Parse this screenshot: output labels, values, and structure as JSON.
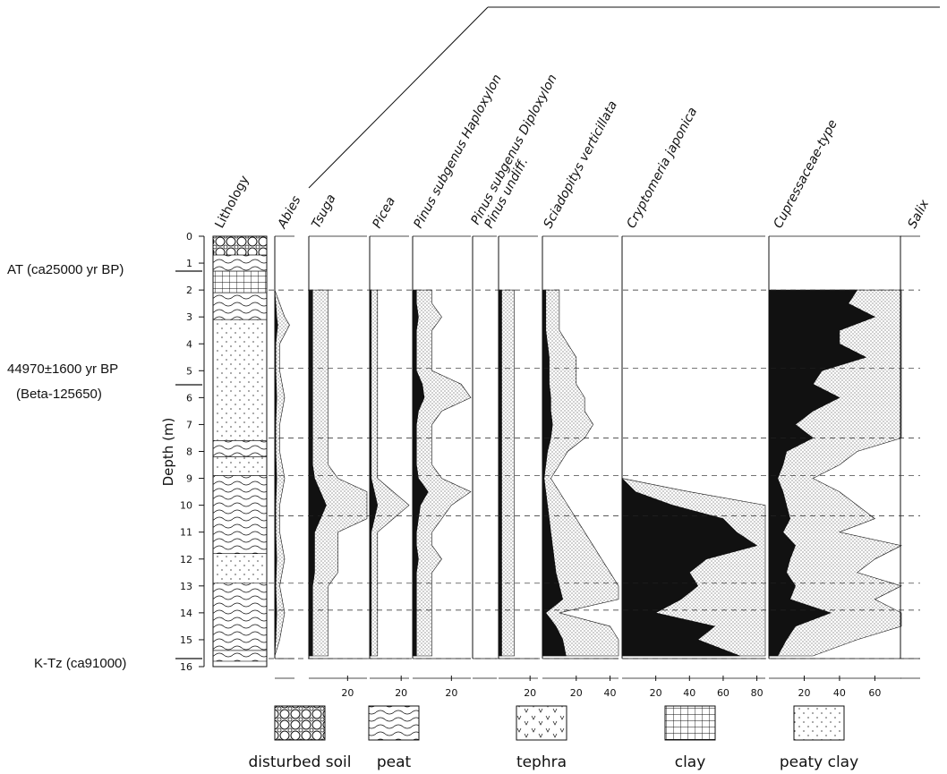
{
  "chart_data": {
    "type": "area",
    "ylabel": "Depth (m)",
    "depth_ticks": [
      0,
      1,
      2,
      3,
      4,
      5,
      6,
      7,
      8,
      9,
      10,
      11,
      12,
      13,
      14,
      15,
      16
    ],
    "depth_range": [
      0,
      16
    ],
    "lithology_label": "Lithology",
    "lithology": [
      {
        "from": 0.0,
        "to": 0.7,
        "type": "disturbed soil"
      },
      {
        "from": 0.7,
        "to": 1.3,
        "type": "peat"
      },
      {
        "from": 1.3,
        "to": 2.1,
        "type": "clay"
      },
      {
        "from": 2.1,
        "to": 3.1,
        "type": "peat"
      },
      {
        "from": 3.1,
        "to": 7.6,
        "type": "peaty clay"
      },
      {
        "from": 7.6,
        "to": 8.2,
        "type": "peat"
      },
      {
        "from": 8.2,
        "to": 8.9,
        "type": "peaty clay"
      },
      {
        "from": 8.9,
        "to": 11.8,
        "type": "peat"
      },
      {
        "from": 11.8,
        "to": 12.9,
        "type": "peaty clay"
      },
      {
        "from": 12.9,
        "to": 15.4,
        "type": "peat"
      },
      {
        "from": 15.4,
        "to": 15.8,
        "type": "peat"
      }
    ],
    "dashed_horizons": [
      2.0,
      4.9,
      7.5,
      8.9,
      10.4,
      12.9,
      13.9,
      15.7
    ],
    "annotations": [
      {
        "text": "AT (ca25000 yr BP)",
        "depth": 1.3
      },
      {
        "text": "44970",
        "depth": 5.3
      },
      {
        "text": "(Beta-125650)",
        "depth": 5.3
      },
      {
        "text": "K-Tz (ca91000)",
        "depth": 15.4
      }
    ],
    "annotation_pm": "±",
    "annotation_rest": "1600 yr BP",
    "taxa": [
      {
        "name": "Abies",
        "axis_max": 20,
        "ticks": [],
        "depths": [
          2,
          3,
          3.3,
          4,
          5,
          6,
          7,
          8,
          9,
          10,
          11,
          12,
          13,
          14,
          15,
          15.6
        ],
        "values": [
          0,
          2,
          3,
          1,
          1,
          2,
          1,
          1,
          2,
          1,
          1,
          2,
          1,
          2,
          1,
          0
        ]
      },
      {
        "name": "Tsuga",
        "axis_max": 30,
        "ticks": [
          20
        ],
        "depths": [
          2,
          2.5,
          3,
          3.5,
          4,
          4.5,
          5,
          5.5,
          6,
          6.5,
          7,
          7.5,
          8,
          8.5,
          9,
          9.5,
          10,
          10.5,
          11,
          11.5,
          12,
          12.5,
          13,
          13.5,
          14,
          14.5,
          15,
          15.6
        ],
        "values": [
          2,
          2,
          2,
          2,
          2,
          2,
          2,
          2,
          2,
          2,
          2,
          2,
          2,
          2,
          3,
          6,
          9,
          6,
          3,
          3,
          3,
          3,
          2,
          2,
          2,
          2,
          2,
          2
        ]
      },
      {
        "name": "Picea",
        "axis_max": 25,
        "ticks": [
          20
        ],
        "depths": [
          2,
          2.5,
          3,
          3.5,
          4,
          4.5,
          5,
          5.5,
          6,
          6.5,
          7,
          7.5,
          8,
          8.5,
          9,
          9.5,
          10,
          10.5,
          11,
          11.5,
          12,
          12.5,
          13,
          13.5,
          14,
          14.5,
          15,
          15.6
        ],
        "values": [
          1,
          1,
          1,
          1,
          1,
          1,
          1,
          1,
          1,
          1,
          1,
          1,
          1,
          1,
          1,
          3,
          5,
          3,
          1,
          1,
          1,
          1,
          1,
          1,
          1,
          1,
          1,
          1
        ]
      },
      {
        "name": "Pinus subgenus Haploxylon",
        "axis_max": 30,
        "ticks": [
          20
        ],
        "depths": [
          2,
          2.5,
          3,
          3.5,
          4,
          4.5,
          5,
          5.5,
          6,
          6.5,
          7,
          7.5,
          8,
          8.5,
          9,
          9.5,
          10,
          10.5,
          11,
          11.5,
          12,
          12.5,
          13,
          13.5,
          14,
          14.5,
          15,
          15.6
        ],
        "values": [
          2,
          2,
          3,
          2,
          2,
          2,
          2,
          5,
          6,
          3,
          2,
          2,
          2,
          2,
          3,
          8,
          4,
          3,
          2,
          2,
          3,
          2,
          2,
          2,
          2,
          2,
          2,
          2
        ]
      },
      {
        "name": "Pinus subgenus Diploxylon",
        "axis_max": 5,
        "ticks": [],
        "depths": [
          2,
          15.6
        ],
        "values": [
          0,
          0
        ]
      },
      {
        "name": "Pinus undiff.",
        "axis_max": 25,
        "ticks": [
          20
        ],
        "depths": [
          2,
          2.5,
          3,
          3.5,
          4,
          4.5,
          5,
          5.5,
          6,
          6.5,
          7,
          7.5,
          8,
          8.5,
          9,
          9.5,
          10,
          10.5,
          11,
          11.5,
          12,
          12.5,
          13,
          13.5,
          14,
          14.5,
          15,
          15.6
        ],
        "values": [
          2,
          2,
          2,
          2,
          2,
          2,
          2,
          2,
          2,
          2,
          2,
          2,
          2,
          2,
          2,
          2,
          2,
          2,
          2,
          2,
          2,
          2,
          2,
          2,
          2,
          2,
          2,
          2
        ]
      },
      {
        "name": "Sciadopitys verticillata",
        "axis_max": 45,
        "ticks": [
          20,
          40
        ],
        "depths": [
          2,
          2.5,
          3,
          3.5,
          4,
          4.5,
          5,
          5.5,
          6,
          6.5,
          7,
          7.5,
          8,
          8.5,
          9,
          9.5,
          10,
          10.5,
          11,
          11.5,
          12,
          12.5,
          13,
          13.5,
          14,
          14.5,
          15,
          15.6
        ],
        "values": [
          2,
          2,
          2,
          2,
          3,
          4,
          4,
          4,
          5,
          5,
          6,
          5,
          3,
          2,
          1,
          2,
          3,
          4,
          5,
          6,
          7,
          8,
          10,
          12,
          2,
          8,
          12,
          14
        ]
      },
      {
        "name": "Cryptomeria japonica",
        "axis_max": 85,
        "ticks": [
          20,
          40,
          60,
          80
        ],
        "depths": [
          2,
          2.5,
          3,
          3.5,
          4,
          4.5,
          5,
          5.5,
          6,
          6.5,
          7,
          7.5,
          8,
          8.5,
          9,
          9.5,
          10,
          10.5,
          11,
          11.5,
          12,
          12.5,
          13,
          13.5,
          14,
          14.5,
          15,
          15.6
        ],
        "values": [
          0,
          0,
          0,
          0,
          0,
          0,
          0,
          0,
          0,
          0,
          0,
          0,
          0,
          0,
          0,
          8,
          30,
          60,
          68,
          80,
          50,
          40,
          45,
          35,
          20,
          55,
          45,
          70
        ]
      },
      {
        "name": "Cupressaceae-type",
        "axis_max": 75,
        "ticks": [
          20,
          40,
          60
        ],
        "depths": [
          2,
          2.5,
          3,
          3.5,
          4,
          4.5,
          5,
          5.5,
          6,
          6.5,
          7,
          7.5,
          8,
          8.5,
          9,
          9.5,
          10,
          10.5,
          11,
          11.5,
          12,
          12.5,
          13,
          13.5,
          14,
          14.5,
          15,
          15.6
        ],
        "values": [
          50,
          45,
          60,
          40,
          40,
          55,
          30,
          25,
          40,
          25,
          15,
          25,
          10,
          8,
          5,
          8,
          10,
          12,
          8,
          15,
          12,
          10,
          15,
          12,
          35,
          15,
          10,
          5
        ]
      },
      {
        "name": "Salix",
        "axis_max": 5,
        "ticks": [],
        "depths": [
          2,
          15.6
        ],
        "values": [
          0,
          0
        ]
      }
    ]
  },
  "legend": [
    {
      "label": "disturbed soil",
      "pattern": "circles"
    },
    {
      "label": "peat",
      "pattern": "wavy"
    },
    {
      "label": "tephra",
      "pattern": "v-marks"
    },
    {
      "label": "clay",
      "pattern": "grid"
    },
    {
      "label": "peaty clay",
      "pattern": "dashes"
    }
  ],
  "colors": {
    "ink": "#111111",
    "stipple": "#9a9a9a",
    "paper": "#ffffff"
  }
}
